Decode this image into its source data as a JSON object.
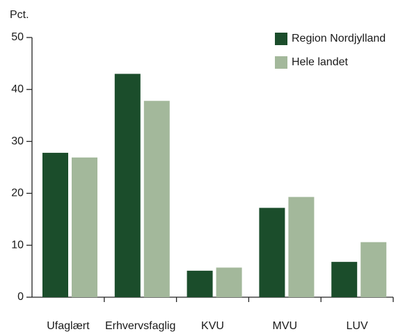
{
  "chart_data": {
    "type": "bar",
    "y_label": "Pct.",
    "categories": [
      "Ufaglært",
      "Erhvervsfaglig",
      "KVU",
      "MVU",
      "LUV"
    ],
    "series": [
      {
        "name": "Region Nordjylland",
        "color": "#1b4d2b",
        "values": [
          27.8,
          43.0,
          5.1,
          17.2,
          6.8
        ]
      },
      {
        "name": "Hele landet",
        "color": "#a3b89b",
        "values": [
          26.9,
          37.8,
          5.7,
          19.3,
          10.6
        ]
      }
    ],
    "ylim": [
      0,
      50
    ],
    "yticks": [
      0,
      10,
      20,
      30,
      40,
      50
    ],
    "grid": false,
    "legend": "top-right"
  }
}
